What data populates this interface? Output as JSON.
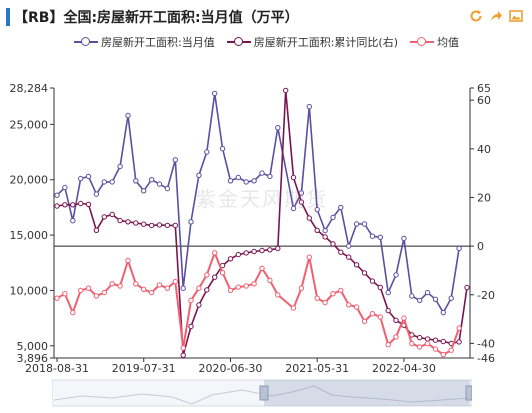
{
  "header": {
    "title": "【RB】全国:房屋新开工面积:当月值（万平）"
  },
  "toolbar": {
    "icons": [
      "refresh-icon",
      "share-icon",
      "save-image-icon"
    ],
    "color": "#f0a030"
  },
  "watermark": "紫金天风期货",
  "chart_data": {
    "type": "line",
    "x": [
      "2018-08-31",
      "2018-09-30",
      "2018-10-31",
      "2018-11-30",
      "2018-12-31",
      "2019-01-31",
      "2019-02-28",
      "2019-03-31",
      "2019-04-30",
      "2019-05-31",
      "2019-06-30",
      "2019-07-31",
      "2019-08-31",
      "2019-09-30",
      "2019-10-31",
      "2019-11-30",
      "2019-12-31",
      "2020-01-31",
      "2020-02-29",
      "2020-03-31",
      "2020-04-30",
      "2020-05-31",
      "2020-06-30",
      "2020-07-31",
      "2020-08-31",
      "2020-09-30",
      "2020-10-31",
      "2020-11-30",
      "2020-12-31",
      "2021-01-31",
      "2021-02-28",
      "2021-03-31",
      "2021-04-30",
      "2021-05-31",
      "2021-06-30",
      "2021-07-31",
      "2021-08-31",
      "2021-09-30",
      "2021-10-31",
      "2021-11-30",
      "2021-12-31",
      "2022-01-31",
      "2022-02-28",
      "2022-03-31",
      "2022-04-30",
      "2022-05-31",
      "2022-06-30",
      "2022-07-31",
      "2022-08-31",
      "2022-09-30",
      "2022-10-31",
      "2022-11-30",
      "2022-12-31"
    ],
    "xticks": [
      "2018-08-31",
      "2019-07-31",
      "2020-06-30",
      "2021-05-31",
      "2022-04-30"
    ],
    "series": [
      {
        "name": "房屋新开工面积:当月值",
        "axis": "left",
        "color": "#5a4fa0",
        "marker": "circle",
        "values": [
          18600,
          19300,
          16300,
          20100,
          20300,
          18700,
          19800,
          19800,
          21200,
          25800,
          19900,
          19000,
          20000,
          19600,
          19200,
          21800,
          10200,
          16200,
          20400,
          22500,
          27800,
          22800,
          19900,
          20200,
          19800,
          19900,
          20600,
          20300,
          24700,
          null,
          17400,
          18800,
          26600,
          17300,
          15400,
          16600,
          17500,
          14000,
          16000,
          16000,
          14900,
          14800,
          9800,
          11400,
          14700,
          9500,
          9100,
          9800,
          9200,
          8000,
          9300,
          13800,
          null
        ]
      },
      {
        "name": "房屋新开工面积:累计同比(右)",
        "axis": "right",
        "color": "#7a1450",
        "marker": "circle",
        "values": [
          16.5,
          17,
          17,
          17.5,
          17.2,
          6.5,
          12,
          13,
          10.5,
          10,
          9.5,
          9,
          8.5,
          8.7,
          8.5,
          8.5,
          -44.9,
          -33,
          -24.2,
          -18,
          -12.8,
          -8,
          -5.2,
          -3.5,
          -2.8,
          -2.2,
          -1.8,
          -1.5,
          -1,
          64,
          28.2,
          18.1,
          11.5,
          6.5,
          3.8,
          0.9,
          -2.5,
          -4.5,
          -7.7,
          -11,
          -14.4,
          -17,
          -26.5,
          -30.5,
          -32.5,
          -36.5,
          -37.6,
          -38.2,
          -38.7,
          -39.2,
          -40,
          -39.4,
          -17
        ]
      },
      {
        "name": "均值",
        "axis": "left",
        "color": "#f06070",
        "marker": "circle",
        "values": [
          9300,
          9700,
          8000,
          10000,
          10200,
          9500,
          9800,
          10600,
          10400,
          12700,
          10600,
          10100,
          9800,
          10500,
          10200,
          10800,
          4800,
          9100,
          10200,
          11400,
          13400,
          11600,
          10000,
          10300,
          10400,
          10600,
          12000,
          10900,
          9600,
          null,
          8400,
          10200,
          13000,
          9300,
          8900,
          9700,
          10000,
          8700,
          8500,
          7200,
          7900,
          7600,
          5100,
          5800,
          7500,
          5200,
          4900,
          5200,
          4700,
          4200,
          4600,
          6600,
          null
        ]
      }
    ],
    "y_left": {
      "min": 3896,
      "max": 28284,
      "ticks": [
        3896,
        5000,
        10000,
        15000,
        20000,
        25000,
        28284
      ]
    },
    "y_right": {
      "min": -46,
      "max": 65,
      "ticks": [
        -46,
        -40,
        -20,
        0,
        20,
        40,
        60,
        65
      ]
    },
    "legend_position": "top"
  }
}
